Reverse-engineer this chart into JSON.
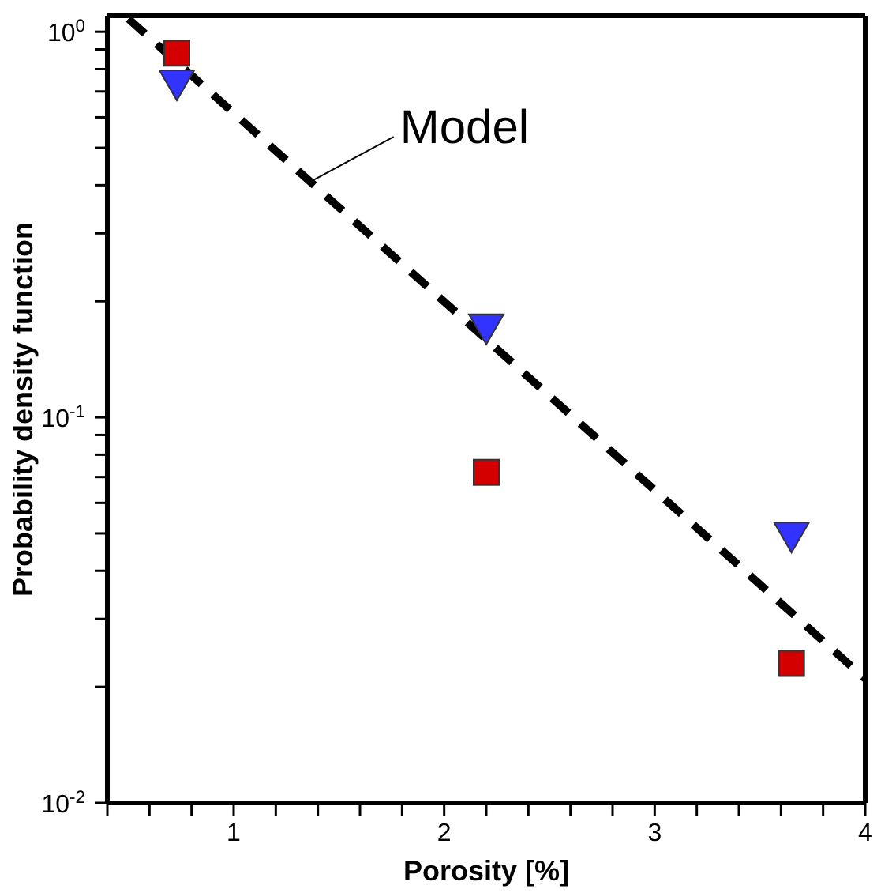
{
  "chart_data": {
    "type": "scatter",
    "xlabel": "Porosity [%]",
    "ylabel": "Probability density function",
    "log": "y",
    "xlim": [
      0.4,
      4
    ],
    "ylim": [
      0.01,
      1.1
    ],
    "xticks": [
      {
        "value": 0.4,
        "label": null
      },
      {
        "value": 0.6,
        "label": null
      },
      {
        "value": 0.8,
        "label": null
      },
      1,
      {
        "value": 1.2,
        "label": null
      },
      {
        "value": 1.4,
        "label": null
      },
      {
        "value": 1.6,
        "label": null
      },
      {
        "value": 1.8,
        "label": null
      },
      2,
      {
        "value": 2.2,
        "label": null
      },
      {
        "value": 2.4,
        "label": null
      },
      {
        "value": 2.6,
        "label": null
      },
      {
        "value": 2.8,
        "label": null
      },
      3,
      {
        "value": 3.2,
        "label": null
      },
      {
        "value": 3.4,
        "label": null
      },
      {
        "value": 3.6,
        "label": null
      },
      {
        "value": 3.8,
        "label": null
      },
      4
    ],
    "yticks": [
      {
        "value": 0.01,
        "label": "10$^{-2}$"
      },
      {
        "value": 0.02,
        "label": null
      },
      {
        "value": 0.03,
        "label": null
      },
      {
        "value": 0.04,
        "label": null
      },
      {
        "value": 0.05,
        "label": null
      },
      {
        "value": 0.06,
        "label": null
      },
      {
        "value": 0.07,
        "label": null
      },
      {
        "value": 0.08,
        "label": null
      },
      {
        "value": 0.09,
        "label": null
      },
      {
        "value": 0.1,
        "label": "10$^{-1}$"
      },
      {
        "value": 0.2,
        "label": null
      },
      {
        "value": 0.3,
        "label": null
      },
      {
        "value": 0.4,
        "label": null
      },
      {
        "value": 0.5,
        "label": null
      },
      {
        "value": 0.6,
        "label": null
      },
      {
        "value": 0.7,
        "label": null
      },
      {
        "value": 0.8,
        "label": null
      },
      {
        "value": 0.9,
        "label": null
      },
      {
        "value": 1,
        "label": "10$^{0}$"
      }
    ],
    "series": [
      {
        "marker": "square",
        "color": "#d40000",
        "x": [
          0.73,
          2.2,
          3.65
        ],
        "values": [
          0.88,
          0.072,
          0.023
        ]
      },
      {
        "marker": "triangle",
        "color": "#3333ff",
        "x": [
          0.73,
          2.2,
          3.65
        ],
        "values": [
          0.73,
          0.17,
          0.049
        ]
      },
      {
        "type": "line",
        "line_style": "dashed",
        "marker": "none",
        "color": "#000000",
        "x": [
          0.5,
          4
        ],
        "values": [
          1.08,
          0.021
        ]
      }
    ],
    "annotations": [
      {
        "text": "Model",
        "x": 1.37,
        "y": 0.41
      }
    ]
  }
}
